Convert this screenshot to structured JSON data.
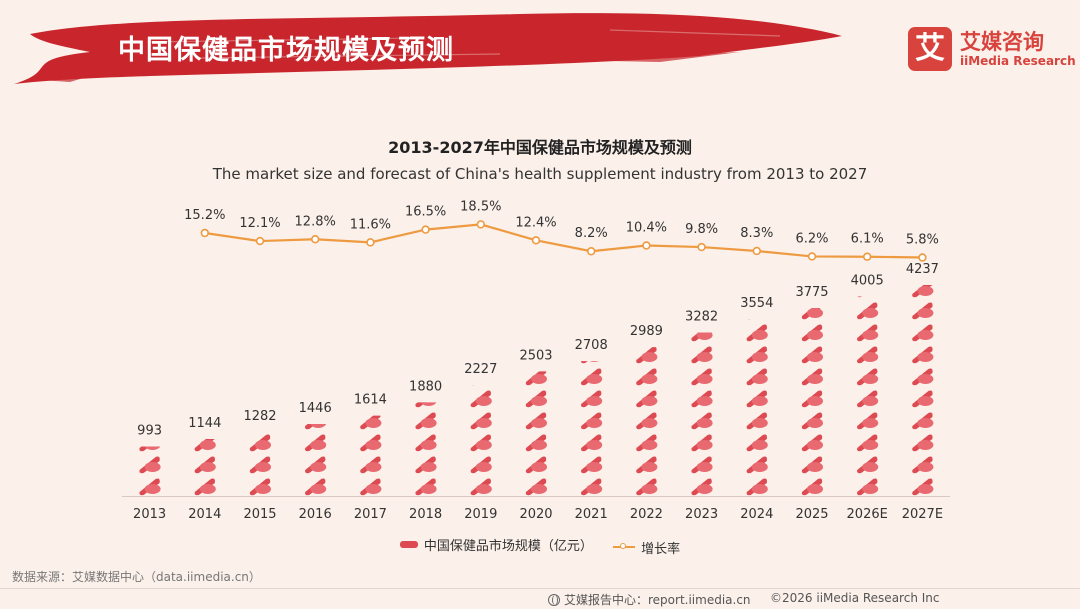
{
  "header": {
    "title": "中国保健品市场规模及预测"
  },
  "brand": {
    "logo_char": "艾",
    "name_cn": "艾媒咨询",
    "name_en": "iiMedia Research",
    "color": "#d8433e"
  },
  "chart_data": {
    "type": "bar",
    "title": "2013-2027年中国保健品市场规模及预测",
    "subtitle": "The market size and forecast of China's health supplement industry from 2013 to 2027",
    "categories": [
      "2013",
      "2014",
      "2015",
      "2016",
      "2017",
      "2018",
      "2019",
      "2020",
      "2021",
      "2022",
      "2023",
      "2024",
      "2025",
      "2026E",
      "2027E"
    ],
    "series": [
      {
        "name": "中国保健品市场规模（亿元）",
        "type": "bar",
        "color": "#de4a52",
        "values": [
          993,
          1144,
          1282,
          1446,
          1614,
          1880,
          2227,
          2503,
          2708,
          2989,
          3282,
          3554,
          3775,
          4005,
          4237
        ]
      },
      {
        "name": "增长率",
        "type": "line",
        "color": "#ee9a40",
        "values": [
          null,
          15.2,
          12.1,
          12.8,
          11.6,
          16.5,
          18.5,
          12.4,
          8.2,
          10.4,
          9.8,
          8.3,
          6.2,
          6.1,
          5.8
        ],
        "labels": [
          "",
          "15.2%",
          "12.1%",
          "12.8%",
          "11.6%",
          "16.5%",
          "18.5%",
          "12.4%",
          "8.2%",
          "10.4%",
          "9.8%",
          "8.3%",
          "6.2%",
          "6.1%",
          "5.8%"
        ]
      }
    ],
    "ylim": [
      0,
      4500
    ],
    "xlabel": "",
    "ylabel": ""
  },
  "legend": {
    "bar_label": "中国保健品市场规模（亿元）",
    "line_label": "增长率"
  },
  "source": "数据来源：艾媒数据中心（data.iimedia.cn）",
  "footer": {
    "center": "艾媒报告中心：report.iimedia.cn",
    "copyright": "©2026  iiMedia Research  Inc"
  }
}
